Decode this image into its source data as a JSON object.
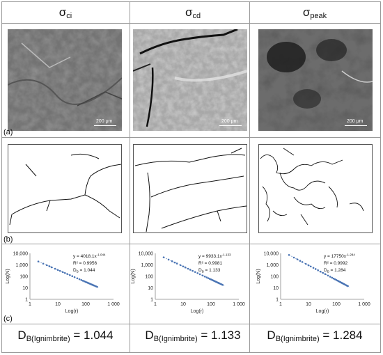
{
  "columns": [
    {
      "sigma": "σ",
      "sub": "ci",
      "scale": "200 μm",
      "fit": {
        "coef": "4018.1",
        "exp": "-1.044",
        "r2": "R² = 0.9956",
        "db": "1.044"
      }
    },
    {
      "sigma": "σ",
      "sub": "cd",
      "scale": "200 μm",
      "fit": {
        "coef": "9933.1",
        "exp": "-1.133",
        "r2": "R² = 0.9981",
        "db": "1.133"
      }
    },
    {
      "sigma": "σ",
      "sub": "peak",
      "scale": "200 μm",
      "fit": {
        "coef": "17750",
        "exp": "-1.284",
        "r2": "R² = 0.9992",
        "db": "1.284"
      }
    }
  ],
  "panels": {
    "a": "(a)",
    "b": "(b)",
    "c": "(c)"
  },
  "db_label": {
    "main": "D",
    "sub": "B(Ignimbrite)",
    "eq": " = "
  },
  "plot_axes": {
    "xlabel": "Log(r)",
    "ylabel": "Log(N)",
    "xticks": [
      "1",
      "10",
      "100",
      "1 000"
    ],
    "yticks": [
      "10,000",
      "1,000",
      "100",
      "10",
      "1"
    ],
    "y_prefix": "y = ",
    "x_suffix": "x",
    "db_prefix": "D",
    "db_sub": "B",
    "db_eq": " = "
  },
  "chart_data": [
    {
      "type": "scatter",
      "xlabel": "Log(r)",
      "ylabel": "Log(N)",
      "x_scale": "log",
      "y_scale": "log",
      "xlim": [
        1,
        1000
      ],
      "ylim": [
        1,
        10000
      ],
      "fit": "y = 4018.1x^-1.044",
      "r2": 0.9956,
      "DB": 1.044
    },
    {
      "type": "scatter",
      "xlabel": "Log(r)",
      "ylabel": "Log(N)",
      "x_scale": "log",
      "y_scale": "log",
      "xlim": [
        1,
        1000
      ],
      "ylim": [
        1,
        10000
      ],
      "fit": "y = 9933.1x^-1.133",
      "r2": 0.9981,
      "DB": 1.133
    },
    {
      "type": "scatter",
      "xlabel": "Log(r)",
      "ylabel": "Log(N)",
      "x_scale": "log",
      "y_scale": "log",
      "xlim": [
        1,
        1000
      ],
      "ylim": [
        1,
        10000
      ],
      "fit": "y = 17750x^-1.284",
      "r2": 0.9992,
      "DB": 1.284
    }
  ],
  "colors": {
    "points": "#4a74b4",
    "grid": "#9a9a9a"
  }
}
